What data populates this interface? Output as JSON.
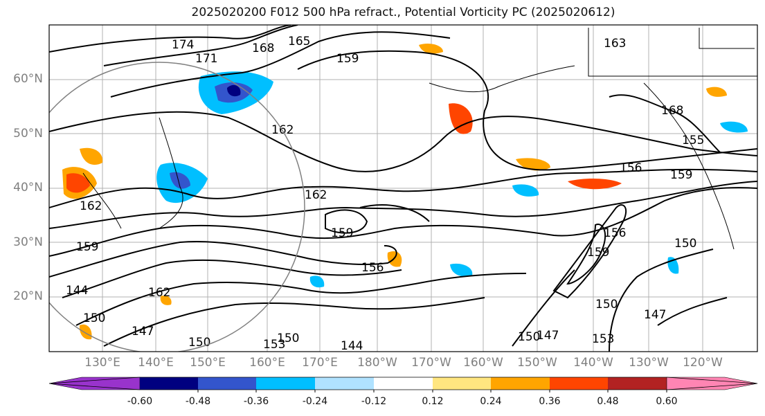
{
  "title": "2025020200 F012 500 hPa refract., Potential Vorticity PC (2025020612)",
  "lat_labels": [
    "60°N",
    "50°N",
    "40°N",
    "30°N",
    "20°N"
  ],
  "lon_labels": [
    "130°E",
    "140°E",
    "150°E",
    "160°E",
    "170°E",
    "180°W",
    "170°W",
    "160°W",
    "150°W",
    "140°W",
    "130°W",
    "120°W"
  ],
  "colorbar": {
    "ticks": [
      "-0.60",
      "-0.48",
      "-0.36",
      "-0.24",
      "-0.12",
      "0.12",
      "0.24",
      "0.36",
      "0.48",
      "0.60"
    ],
    "colors": [
      "#9933cc",
      "#000080",
      "#3355cc",
      "#00bfff",
      "#b0e2ff",
      "#ffffff",
      "#ffe680",
      "#ffa500",
      "#ff4500",
      "#b22222",
      "#ff85b3"
    ]
  },
  "contour_labels": [
    "174",
    "171",
    "168",
    "165",
    "159",
    "163",
    "168",
    "155",
    "162",
    "156",
    "159",
    "162",
    "162",
    "159",
    "159",
    "156",
    "150",
    "144",
    "147",
    "162",
    "150",
    "153",
    "150",
    "144",
    "147",
    "150",
    "153",
    "147",
    "150",
    "150",
    "159",
    "156"
  ]
}
